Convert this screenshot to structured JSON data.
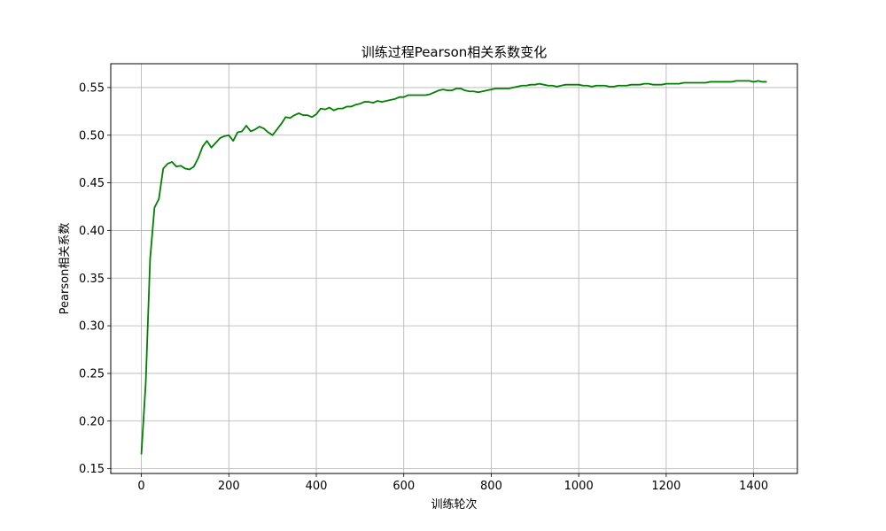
{
  "chart_data": {
    "type": "line",
    "title": "训练过程Pearson相关系数变化",
    "xlabel": "训练轮次",
    "ylabel": "Pearson相关系数",
    "xlim": [
      -70,
      1500
    ],
    "ylim": [
      0.145,
      0.575
    ],
    "x_ticks": [
      0,
      200,
      400,
      600,
      800,
      1000,
      1200,
      1400
    ],
    "y_ticks": [
      0.15,
      0.2,
      0.25,
      0.3,
      0.35,
      0.4,
      0.45,
      0.5,
      0.55
    ],
    "grid": true,
    "series": [
      {
        "color": "#008000",
        "x": [
          0,
          10,
          20,
          30,
          40,
          50,
          60,
          70,
          80,
          90,
          100,
          110,
          120,
          130,
          140,
          150,
          160,
          170,
          180,
          190,
          200,
          210,
          220,
          230,
          240,
          250,
          260,
          270,
          280,
          290,
          300,
          310,
          320,
          330,
          340,
          350,
          360,
          370,
          380,
          390,
          400,
          410,
          420,
          430,
          440,
          450,
          460,
          470,
          480,
          490,
          500,
          510,
          520,
          530,
          540,
          550,
          560,
          570,
          580,
          590,
          600,
          610,
          620,
          630,
          640,
          650,
          660,
          670,
          680,
          690,
          700,
          710,
          720,
          730,
          740,
          750,
          760,
          770,
          780,
          790,
          800,
          810,
          820,
          830,
          840,
          850,
          860,
          870,
          880,
          890,
          900,
          910,
          920,
          930,
          940,
          950,
          960,
          970,
          980,
          990,
          1000,
          1010,
          1020,
          1030,
          1040,
          1050,
          1060,
          1070,
          1080,
          1090,
          1100,
          1110,
          1120,
          1130,
          1140,
          1150,
          1160,
          1170,
          1180,
          1190,
          1200,
          1210,
          1220,
          1230,
          1240,
          1250,
          1260,
          1270,
          1280,
          1290,
          1300,
          1310,
          1320,
          1330,
          1340,
          1350,
          1360,
          1370,
          1380,
          1390,
          1400,
          1410,
          1420,
          1430
        ],
        "y": [
          0.165,
          0.24,
          0.37,
          0.424,
          0.433,
          0.465,
          0.47,
          0.472,
          0.467,
          0.468,
          0.465,
          0.464,
          0.467,
          0.476,
          0.488,
          0.494,
          0.487,
          0.492,
          0.497,
          0.499,
          0.5,
          0.494,
          0.503,
          0.504,
          0.51,
          0.504,
          0.506,
          0.509,
          0.507,
          0.503,
          0.5,
          0.506,
          0.512,
          0.519,
          0.518,
          0.521,
          0.523,
          0.521,
          0.521,
          0.519,
          0.522,
          0.528,
          0.527,
          0.529,
          0.526,
          0.528,
          0.528,
          0.53,
          0.53,
          0.532,
          0.533,
          0.535,
          0.535,
          0.534,
          0.536,
          0.535,
          0.536,
          0.537,
          0.538,
          0.54,
          0.54,
          0.542,
          0.542,
          0.542,
          0.542,
          0.542,
          0.543,
          0.545,
          0.547,
          0.548,
          0.547,
          0.547,
          0.549,
          0.549,
          0.547,
          0.546,
          0.546,
          0.545,
          0.546,
          0.547,
          0.548,
          0.549,
          0.549,
          0.549,
          0.549,
          0.55,
          0.551,
          0.552,
          0.552,
          0.553,
          0.553,
          0.554,
          0.553,
          0.552,
          0.552,
          0.551,
          0.552,
          0.553,
          0.553,
          0.553,
          0.553,
          0.552,
          0.552,
          0.551,
          0.552,
          0.552,
          0.552,
          0.551,
          0.551,
          0.552,
          0.552,
          0.552,
          0.553,
          0.553,
          0.553,
          0.554,
          0.554,
          0.553,
          0.553,
          0.553,
          0.554,
          0.554,
          0.554,
          0.554,
          0.555,
          0.555,
          0.555,
          0.555,
          0.555,
          0.555,
          0.556,
          0.556,
          0.556,
          0.556,
          0.556,
          0.556,
          0.557,
          0.557,
          0.557,
          0.557,
          0.556,
          0.557,
          0.556,
          0.556
        ]
      }
    ]
  }
}
